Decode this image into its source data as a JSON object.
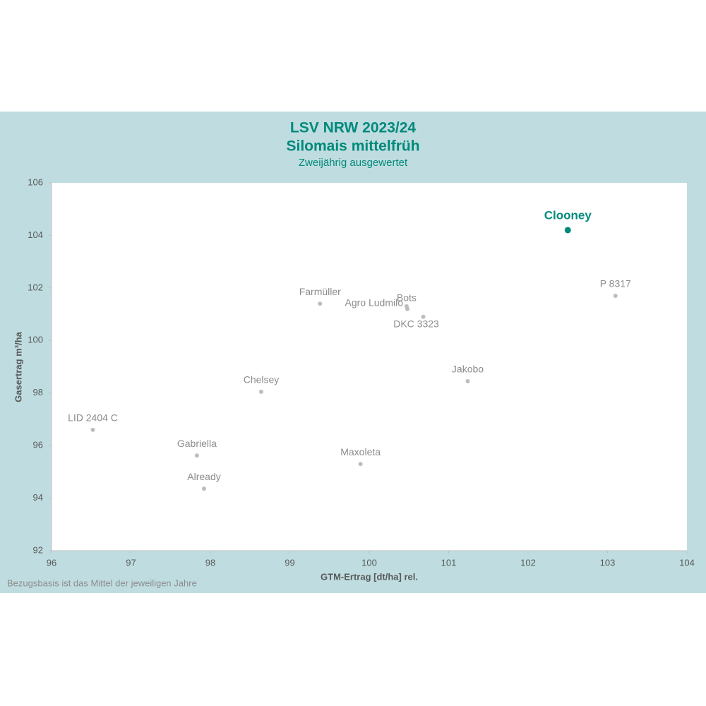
{
  "chart_data": {
    "type": "scatter",
    "title": [
      "LSV NRW 2023/24",
      "Silomais mittelfrüh"
    ],
    "subtitle": "Zweijährig ausgewertet",
    "x_label": "GTM-Ertrag [dt/ha] rel.",
    "y_label": "Gasertrag m³/ha",
    "footnote": "Bezugsbasis ist das Mittel der jeweiligen  Jahre",
    "labels": [
      "Clooney",
      "P 8317",
      "Farmüller",
      "Bots",
      "Agro Ludmilo",
      "DKC 3323",
      "Jakobo",
      "Chelsey",
      "LID 2404 C",
      "Gabriella",
      "Already",
      "Maxoleta"
    ],
    "x": [
      102.5,
      103.1,
      99.38,
      100.47,
      100.48,
      100.68,
      101.24,
      98.64,
      96.52,
      97.83,
      97.92,
      99.89
    ],
    "values": [
      104.2,
      101.7,
      101.4,
      101.3,
      101.2,
      100.9,
      98.45,
      98.05,
      96.6,
      95.62,
      94.36,
      95.3
    ],
    "colors": [
      "#00897b",
      "#bdbdbd",
      "#bdbdbd",
      "#bdbdbd",
      "#bdbdbd",
      "#bdbdbd",
      "#bdbdbd",
      "#bdbdbd",
      "#bdbdbd",
      "#bdbdbd",
      "#bdbdbd",
      "#bdbdbd"
    ],
    "highlight_color": "#00897b",
    "xlim": [
      96,
      104
    ],
    "ylim": [
      92,
      106
    ],
    "xticks": [
      96,
      97,
      98,
      99,
      100,
      101,
      102,
      103,
      104
    ],
    "yticks": [
      92,
      94,
      96,
      98,
      100,
      102,
      104,
      106
    ],
    "grid": false
  }
}
